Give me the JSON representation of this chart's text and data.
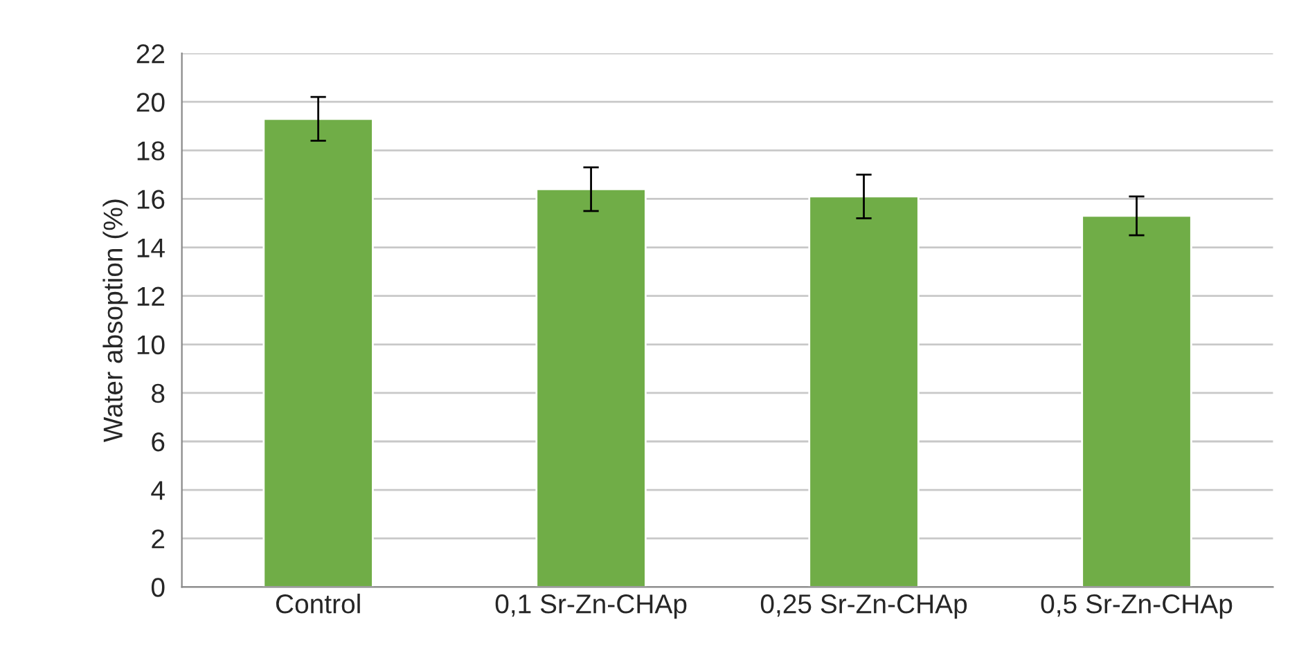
{
  "chart_data": {
    "type": "bar",
    "ylabel": "Water absoption (%)",
    "categories": [
      "Control",
      "0,1 Sr-Zn-CHAp",
      "0,25 Sr-Zn-CHAp",
      "0,5 Sr-Zn-CHAp"
    ],
    "values": [
      19.3,
      16.4,
      16.1,
      15.3
    ],
    "errors": [
      0.9,
      0.9,
      0.9,
      0.8
    ],
    "color": "#70ad47",
    "ylim": [
      0,
      22
    ],
    "yticks": [
      0,
      2,
      4,
      6,
      8,
      10,
      12,
      14,
      16,
      18,
      20,
      22
    ],
    "grid": "y"
  }
}
